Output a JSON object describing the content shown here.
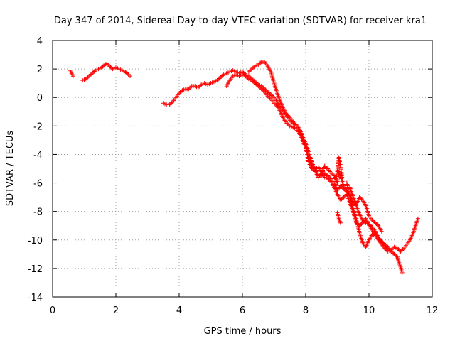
{
  "chart_data": {
    "type": "scatter",
    "title": "Day 347 of 2014, Sidereal Day-to-day VTEC variation (SDTVAR) for receiver kra1",
    "xlabel": "GPS time / hours",
    "ylabel": "SDTVAR / TECUs",
    "xlim": [
      0,
      12
    ],
    "ylim": [
      -14,
      4
    ],
    "xticks": [
      0,
      2,
      4,
      6,
      8,
      10,
      12
    ],
    "yticks": [
      -14,
      -12,
      -10,
      -8,
      -6,
      -4,
      -2,
      0,
      2,
      4
    ],
    "grid": true,
    "marker": "+",
    "series": [
      {
        "name": "kra1",
        "color": "#ff0000",
        "segments": [
          [
            [
              0.55,
              1.9
            ],
            [
              0.6,
              1.7
            ],
            [
              0.65,
              1.5
            ]
          ],
          [
            [
              0.95,
              1.2
            ],
            [
              1.05,
              1.3
            ],
            [
              1.15,
              1.5
            ],
            [
              1.25,
              1.7
            ],
            [
              1.35,
              1.9
            ],
            [
              1.45,
              2.0
            ],
            [
              1.55,
              2.1
            ],
            [
              1.65,
              2.3
            ],
            [
              1.72,
              2.4
            ],
            [
              1.8,
              2.2
            ],
            [
              1.9,
              2.0
            ],
            [
              2.0,
              2.1
            ],
            [
              2.1,
              2.0
            ],
            [
              2.2,
              1.9
            ],
            [
              2.3,
              1.8
            ],
            [
              2.4,
              1.6
            ],
            [
              2.45,
              1.5
            ]
          ],
          [
            [
              3.5,
              -0.4
            ],
            [
              3.6,
              -0.5
            ],
            [
              3.7,
              -0.5
            ],
            [
              3.8,
              -0.3
            ],
            [
              3.9,
              0.0
            ],
            [
              4.0,
              0.3
            ],
            [
              4.1,
              0.5
            ],
            [
              4.2,
              0.6
            ],
            [
              4.3,
              0.6
            ],
            [
              4.4,
              0.8
            ],
            [
              4.5,
              0.8
            ],
            [
              4.6,
              0.7
            ],
            [
              4.7,
              0.9
            ],
            [
              4.8,
              1.0
            ],
            [
              4.9,
              0.9
            ],
            [
              5.0,
              1.0
            ],
            [
              5.1,
              1.1
            ],
            [
              5.2,
              1.2
            ],
            [
              5.3,
              1.4
            ],
            [
              5.4,
              1.6
            ],
            [
              5.5,
              1.7
            ],
            [
              5.6,
              1.8
            ],
            [
              5.7,
              1.9
            ],
            [
              5.8,
              1.8
            ],
            [
              5.9,
              1.7
            ],
            [
              6.0,
              1.8
            ],
            [
              6.1,
              1.6
            ],
            [
              6.2,
              1.5
            ],
            [
              6.3,
              1.3
            ],
            [
              6.4,
              1.1
            ],
            [
              6.5,
              0.9
            ],
            [
              6.6,
              0.8
            ],
            [
              6.7,
              0.6
            ],
            [
              6.8,
              0.4
            ],
            [
              6.9,
              0.2
            ],
            [
              7.0,
              0.0
            ],
            [
              7.1,
              -0.3
            ],
            [
              7.2,
              -0.7
            ],
            [
              7.3,
              -1.0
            ],
            [
              7.4,
              -1.3
            ],
            [
              7.5,
              -1.6
            ],
            [
              7.6,
              -1.8
            ],
            [
              7.7,
              -1.9
            ],
            [
              7.8,
              -2.2
            ],
            [
              7.9,
              -2.7
            ],
            [
              8.0,
              -3.4
            ],
            [
              8.05,
              -4.0
            ],
            [
              8.1,
              -4.6
            ],
            [
              8.2,
              -5.0
            ],
            [
              8.3,
              -5.2
            ],
            [
              8.4,
              -5.6
            ],
            [
              8.5,
              -5.3
            ],
            [
              8.6,
              -4.8
            ],
            [
              8.7,
              -5.0
            ],
            [
              8.8,
              -5.3
            ],
            [
              8.9,
              -5.5
            ],
            [
              9.0,
              -6.0
            ],
            [
              9.05,
              -5.2
            ],
            [
              9.1,
              -5.5
            ],
            [
              9.2,
              -6.2
            ],
            [
              9.3,
              -6.5
            ],
            [
              9.4,
              -7.0
            ],
            [
              9.5,
              -7.8
            ],
            [
              9.6,
              -8.5
            ],
            [
              9.7,
              -9.5
            ],
            [
              9.8,
              -10.2
            ],
            [
              9.9,
              -10.5
            ],
            [
              10.0,
              -10.0
            ],
            [
              10.1,
              -9.6
            ],
            [
              10.2,
              -9.7
            ],
            [
              10.3,
              -10.0
            ],
            [
              10.4,
              -10.3
            ],
            [
              10.5,
              -10.6
            ],
            [
              10.6,
              -10.8
            ],
            [
              10.7,
              -10.7
            ],
            [
              10.8,
              -10.5
            ],
            [
              10.9,
              -10.6
            ],
            [
              11.0,
              -10.8
            ],
            [
              11.1,
              -10.6
            ],
            [
              11.2,
              -10.3
            ],
            [
              11.3,
              -10.0
            ],
            [
              11.4,
              -9.5
            ],
            [
              11.5,
              -8.8
            ],
            [
              11.55,
              -8.5
            ]
          ],
          [
            [
              5.5,
              0.8
            ],
            [
              5.6,
              1.2
            ],
            [
              5.7,
              1.5
            ],
            [
              5.8,
              1.6
            ],
            [
              5.9,
              1.5
            ],
            [
              6.0,
              1.6
            ],
            [
              6.1,
              1.5
            ],
            [
              6.2,
              1.3
            ],
            [
              6.3,
              1.2
            ],
            [
              6.4,
              1.0
            ],
            [
              6.5,
              0.8
            ],
            [
              6.6,
              0.6
            ],
            [
              6.7,
              0.4
            ],
            [
              6.8,
              0.1
            ],
            [
              6.9,
              -0.1
            ],
            [
              7.0,
              -0.4
            ],
            [
              7.1,
              -0.6
            ],
            [
              7.2,
              -1.0
            ],
            [
              7.3,
              -1.5
            ],
            [
              7.4,
              -1.8
            ],
            [
              7.5,
              -2.0
            ],
            [
              7.6,
              -2.1
            ],
            [
              7.7,
              -2.2
            ],
            [
              7.8,
              -2.5
            ],
            [
              7.9,
              -3.0
            ],
            [
              8.0,
              -3.5
            ],
            [
              8.1,
              -4.3
            ],
            [
              8.2,
              -4.8
            ],
            [
              8.3,
              -5.0
            ],
            [
              8.4,
              -4.9
            ],
            [
              8.5,
              -5.2
            ],
            [
              8.6,
              -5.6
            ],
            [
              8.7,
              -5.7
            ],
            [
              8.8,
              -5.9
            ],
            [
              8.9,
              -6.3
            ],
            [
              9.0,
              -6.8
            ],
            [
              9.1,
              -7.2
            ],
            [
              9.2,
              -7.0
            ],
            [
              9.3,
              -6.8
            ],
            [
              9.4,
              -7.4
            ],
            [
              9.5,
              -8.0
            ],
            [
              9.6,
              -8.8
            ],
            [
              9.7,
              -9.0
            ],
            [
              9.8,
              -8.8
            ],
            [
              9.9,
              -8.5
            ],
            [
              10.0,
              -8.9
            ],
            [
              10.1,
              -9.3
            ],
            [
              10.2,
              -9.6
            ],
            [
              10.3,
              -9.9
            ],
            [
              10.4,
              -10.1
            ],
            [
              10.5,
              -10.3
            ],
            [
              10.6,
              -10.5
            ],
            [
              10.7,
              -10.8
            ],
            [
              10.8,
              -11.0
            ],
            [
              10.9,
              -11.2
            ],
            [
              10.95,
              -11.6
            ],
            [
              11.0,
              -11.9
            ],
            [
              11.05,
              -12.3
            ]
          ],
          [
            [
              6.2,
              1.8
            ],
            [
              6.3,
              2.0
            ],
            [
              6.4,
              2.2
            ],
            [
              6.5,
              2.3
            ],
            [
              6.6,
              2.5
            ],
            [
              6.7,
              2.5
            ],
            [
              6.8,
              2.2
            ],
            [
              6.9,
              1.8
            ],
            [
              7.0,
              1.0
            ],
            [
              7.1,
              0.3
            ],
            [
              7.2,
              -0.3
            ],
            [
              7.3,
              -0.8
            ],
            [
              7.4,
              -1.2
            ],
            [
              7.5,
              -1.4
            ],
            [
              7.6,
              -1.7
            ],
            [
              7.7,
              -2.0
            ],
            [
              7.8,
              -2.3
            ],
            [
              7.9,
              -2.8
            ],
            [
              8.0,
              -3.2
            ],
            [
              8.1,
              -3.9
            ],
            [
              8.2,
              -4.6
            ],
            [
              8.3,
              -5.0
            ],
            [
              8.4,
              -5.4
            ],
            [
              8.5,
              -5.5
            ],
            [
              8.6,
              -5.3
            ],
            [
              8.7,
              -5.5
            ],
            [
              8.8,
              -5.7
            ],
            [
              8.9,
              -6.0
            ],
            [
              9.0,
              -6.5
            ],
            [
              9.1,
              -6.2
            ],
            [
              9.2,
              -6.4
            ],
            [
              9.3,
              -6.6
            ],
            [
              9.4,
              -6.8
            ],
            [
              9.5,
              -7.4
            ],
            [
              9.6,
              -7.6
            ],
            [
              9.7,
              -8.2
            ],
            [
              9.8,
              -8.6
            ],
            [
              9.9,
              -8.8
            ],
            [
              10.0,
              -8.9
            ],
            [
              10.1,
              -9.1
            ],
            [
              10.2,
              -9.4
            ],
            [
              10.3,
              -9.8
            ],
            [
              10.4,
              -10.2
            ],
            [
              10.5,
              -10.5
            ],
            [
              10.6,
              -10.6
            ]
          ],
          [
            [
              8.95,
              -6.0
            ],
            [
              9.0,
              -5.2
            ],
            [
              9.05,
              -4.2
            ],
            [
              9.1,
              -4.8
            ],
            [
              9.15,
              -5.6
            ]
          ],
          [
            [
              9.3,
              -6.0
            ],
            [
              9.35,
              -6.5
            ],
            [
              9.4,
              -6.3
            ],
            [
              9.5,
              -7.0
            ],
            [
              9.6,
              -7.5
            ],
            [
              9.7,
              -7.0
            ],
            [
              9.8,
              -7.2
            ],
            [
              9.9,
              -7.6
            ],
            [
              10.0,
              -8.3
            ],
            [
              10.1,
              -8.6
            ],
            [
              10.2,
              -8.8
            ],
            [
              10.3,
              -9.0
            ],
            [
              10.4,
              -9.4
            ]
          ],
          [
            [
              9.0,
              -8.1
            ],
            [
              9.05,
              -8.5
            ],
            [
              9.1,
              -8.8
            ]
          ]
        ]
      }
    ]
  }
}
